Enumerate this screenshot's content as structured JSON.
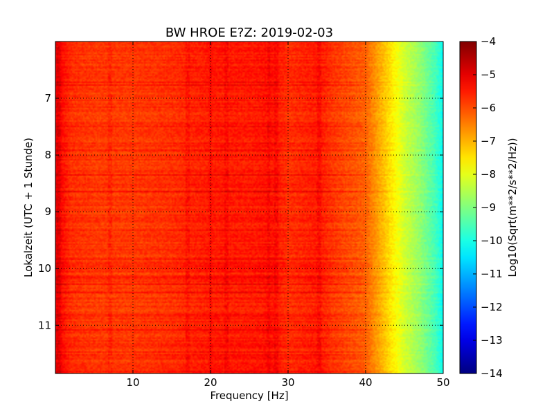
{
  "chart_data": {
    "type": "heatmap",
    "title": "BW HROE E?Z: 2019-02-03",
    "xlabel": "Frequency [Hz]",
    "ylabel": "Lokalzeit (UTC + 1 Stunde)",
    "xlim": [
      0,
      50
    ],
    "ylim": [
      11.85,
      6.0
    ],
    "y_inverted": true,
    "x_ticks": [
      10,
      20,
      30,
      40,
      50
    ],
    "x_tick_labels": [
      "10",
      "20",
      "30",
      "40",
      "50"
    ],
    "y_ticks": [
      7,
      8,
      9,
      10,
      11
    ],
    "y_tick_labels": [
      "7",
      "8",
      "9",
      "10",
      "11"
    ],
    "grid": true,
    "colormap": "jet",
    "colorbar": {
      "label": "Log10(Sqrt(m**2/s**2/Hz))",
      "range": [
        -14,
        -4
      ],
      "ticks": [
        -4,
        -5,
        -6,
        -7,
        -8,
        -9,
        -10,
        -11,
        -12,
        -13,
        -14
      ],
      "tick_labels": [
        "−4",
        "−5",
        "−6",
        "−7",
        "−8",
        "−9",
        "−10",
        "−11",
        "−12",
        "−13",
        "−14"
      ]
    },
    "spectral_profile": {
      "frequency_hz": [
        0,
        1,
        2,
        5,
        10,
        15,
        20,
        25,
        28,
        30,
        34,
        36,
        38,
        40,
        41,
        42,
        43,
        44,
        45,
        46,
        47,
        48,
        49,
        50
      ],
      "log10_amplitude": [
        -5.0,
        -5.4,
        -5.7,
        -5.8,
        -5.8,
        -5.7,
        -5.5,
        -5.5,
        -5.4,
        -5.7,
        -5.5,
        -5.8,
        -6.0,
        -6.2,
        -6.6,
        -7.0,
        -7.4,
        -7.8,
        -8.2,
        -8.5,
        -8.8,
        -9.2,
        -9.6,
        -10.2
      ]
    },
    "strong_bands_hz": [
      0.5,
      7,
      17,
      20,
      22,
      27.5,
      28.5,
      34
    ]
  }
}
